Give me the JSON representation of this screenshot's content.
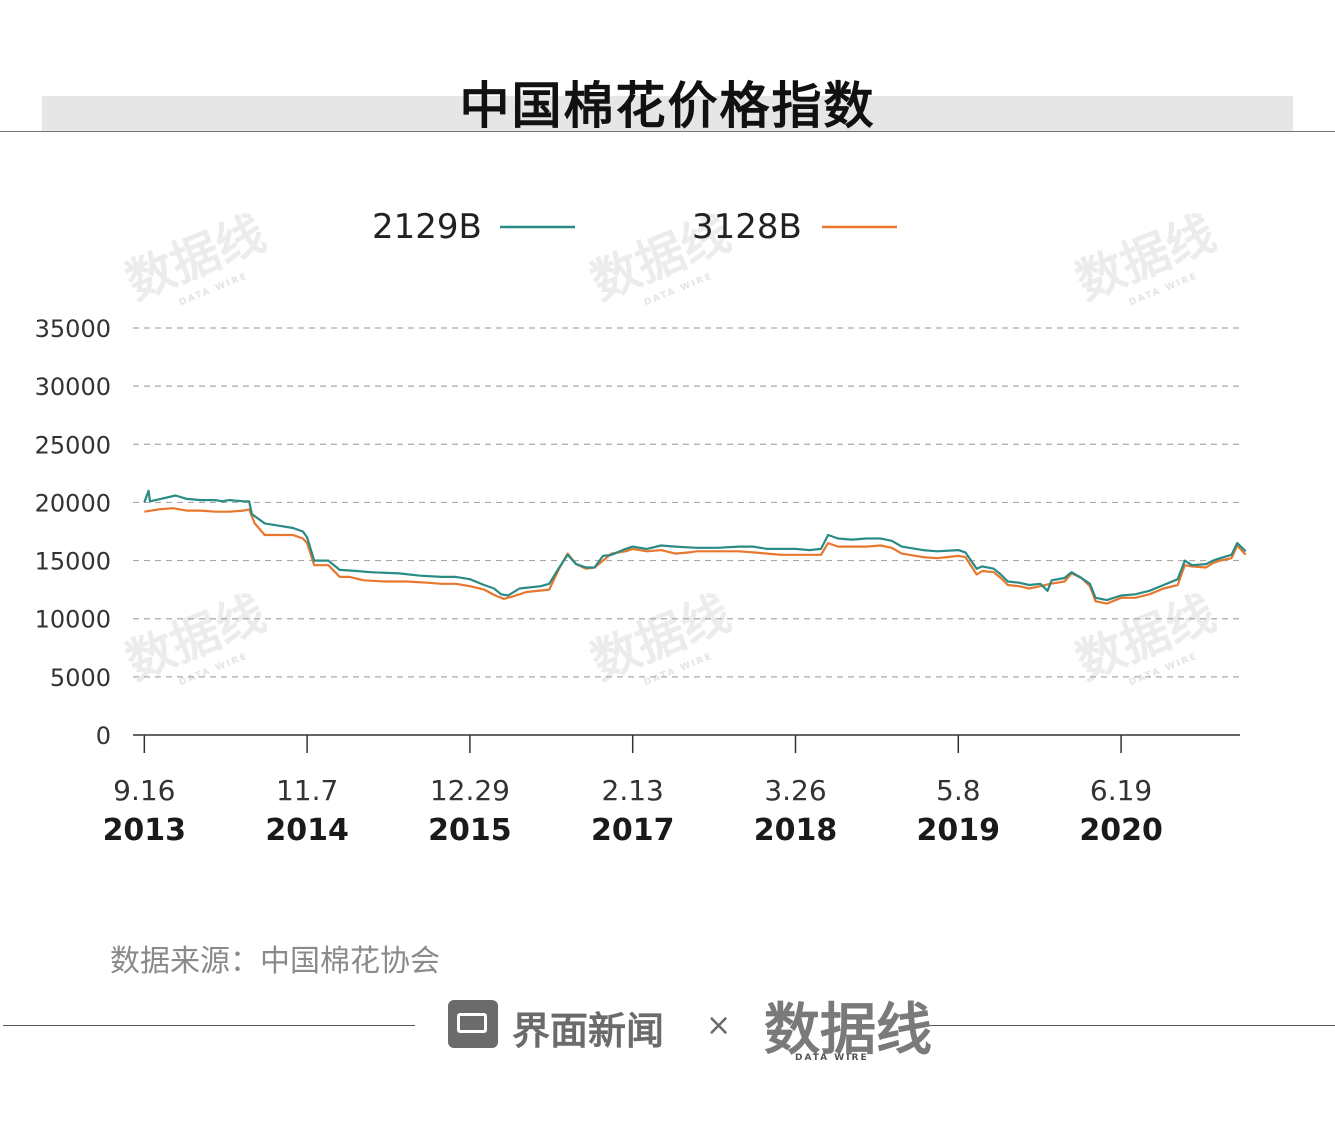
{
  "title": "中国棉花价格指数",
  "source": "数据来源：中国棉花协会",
  "footer": {
    "brand": "界面新闻",
    "times": "×",
    "partner": "数据线",
    "partner_sub": "DATA WIRE"
  },
  "watermark": {
    "text": "数据线",
    "sub": "DATA WIRE"
  },
  "colors": {
    "series_2129B": "#2a8a84",
    "series_3128B": "#e8772e",
    "grid": "#aaaaaa",
    "title_band": "#e6e6e6"
  },
  "chart_data": {
    "type": "line",
    "legend_position": "top",
    "grid": "horizontal-dashed",
    "ylim": [
      0,
      35000
    ],
    "yticks": [
      "35000",
      "30000",
      "25000",
      "20000",
      "15000",
      "10000",
      "5000",
      "0"
    ],
    "xticks": [
      {
        "date": "9.16",
        "year": "2013",
        "t": 0
      },
      {
        "date": "11.7",
        "year": "2014",
        "t": 1.15
      },
      {
        "date": "12.29",
        "year": "2015",
        "t": 2.3
      },
      {
        "date": "2.13",
        "year": "2017",
        "t": 3.45
      },
      {
        "date": "3.26",
        "year": "2018",
        "t": 4.6
      },
      {
        "date": "5.8",
        "year": "2019",
        "t": 5.75
      },
      {
        "date": "6.19",
        "year": "2020",
        "t": 6.9
      }
    ],
    "xlim": [
      -0.08,
      7.74
    ],
    "series": [
      {
        "name": "2129B",
        "color": "#2a8a84",
        "points": [
          [
            0,
            20000
          ],
          [
            0.03,
            21000
          ],
          [
            0.04,
            20100
          ],
          [
            0.15,
            20400
          ],
          [
            0.22,
            20600
          ],
          [
            0.3,
            20300
          ],
          [
            0.4,
            20200
          ],
          [
            0.5,
            20200
          ],
          [
            0.55,
            20100
          ],
          [
            0.6,
            20200
          ],
          [
            0.7,
            20100
          ],
          [
            0.74,
            20100
          ],
          [
            0.76,
            19000
          ],
          [
            0.85,
            18200
          ],
          [
            0.95,
            18000
          ],
          [
            1.05,
            17800
          ],
          [
            1.12,
            17500
          ],
          [
            1.15,
            17000
          ],
          [
            1.2,
            15000
          ],
          [
            1.3,
            15000
          ],
          [
            1.38,
            14200
          ],
          [
            1.5,
            14100
          ],
          [
            1.6,
            14000
          ],
          [
            1.8,
            13900
          ],
          [
            1.95,
            13700
          ],
          [
            2.1,
            13600
          ],
          [
            2.2,
            13600
          ],
          [
            2.3,
            13400
          ],
          [
            2.4,
            12900
          ],
          [
            2.47,
            12600
          ],
          [
            2.52,
            12100
          ],
          [
            2.57,
            12000
          ],
          [
            2.65,
            12600
          ],
          [
            2.8,
            12800
          ],
          [
            2.86,
            13000
          ],
          [
            2.92,
            14200
          ],
          [
            2.99,
            15500
          ],
          [
            3.05,
            14700
          ],
          [
            3.12,
            14400
          ],
          [
            3.18,
            14400
          ],
          [
            3.24,
            15400
          ],
          [
            3.3,
            15500
          ],
          [
            3.4,
            16000
          ],
          [
            3.45,
            16200
          ],
          [
            3.55,
            16000
          ],
          [
            3.65,
            16300
          ],
          [
            3.75,
            16200
          ],
          [
            3.9,
            16100
          ],
          [
            4.05,
            16100
          ],
          [
            4.2,
            16200
          ],
          [
            4.3,
            16200
          ],
          [
            4.4,
            16000
          ],
          [
            4.5,
            16000
          ],
          [
            4.6,
            16000
          ],
          [
            4.7,
            15900
          ],
          [
            4.78,
            16000
          ],
          [
            4.83,
            17200
          ],
          [
            4.9,
            16900
          ],
          [
            5.0,
            16800
          ],
          [
            5.1,
            16900
          ],
          [
            5.2,
            16900
          ],
          [
            5.28,
            16700
          ],
          [
            5.35,
            16200
          ],
          [
            5.5,
            15900
          ],
          [
            5.6,
            15800
          ],
          [
            5.75,
            15900
          ],
          [
            5.8,
            15700
          ],
          [
            5.88,
            14300
          ],
          [
            5.92,
            14500
          ],
          [
            6.0,
            14300
          ],
          [
            6.05,
            13800
          ],
          [
            6.1,
            13200
          ],
          [
            6.18,
            13100
          ],
          [
            6.25,
            12900
          ],
          [
            6.33,
            13000
          ],
          [
            6.38,
            12400
          ],
          [
            6.41,
            13300
          ],
          [
            6.5,
            13500
          ],
          [
            6.55,
            14000
          ],
          [
            6.62,
            13500
          ],
          [
            6.68,
            13000
          ],
          [
            6.72,
            11800
          ],
          [
            6.8,
            11600
          ],
          [
            6.9,
            12000
          ],
          [
            7.0,
            12100
          ],
          [
            7.1,
            12400
          ],
          [
            7.2,
            12900
          ],
          [
            7.3,
            13400
          ],
          [
            7.35,
            15000
          ],
          [
            7.4,
            14600
          ],
          [
            7.5,
            14700
          ],
          [
            7.55,
            15000
          ],
          [
            7.6,
            15200
          ],
          [
            7.68,
            15500
          ],
          [
            7.72,
            16500
          ],
          [
            7.78,
            15800
          ]
        ]
      },
      {
        "name": "3128B",
        "color": "#e8772e",
        "points": [
          [
            0,
            19200
          ],
          [
            0.1,
            19400
          ],
          [
            0.2,
            19500
          ],
          [
            0.3,
            19300
          ],
          [
            0.4,
            19300
          ],
          [
            0.5,
            19200
          ],
          [
            0.6,
            19200
          ],
          [
            0.7,
            19300
          ],
          [
            0.74,
            19400
          ],
          [
            0.78,
            18200
          ],
          [
            0.85,
            17200
          ],
          [
            0.95,
            17200
          ],
          [
            1.05,
            17200
          ],
          [
            1.12,
            16900
          ],
          [
            1.15,
            16500
          ],
          [
            1.2,
            14600
          ],
          [
            1.3,
            14600
          ],
          [
            1.38,
            13600
          ],
          [
            1.45,
            13600
          ],
          [
            1.55,
            13300
          ],
          [
            1.7,
            13200
          ],
          [
            1.85,
            13200
          ],
          [
            2.0,
            13100
          ],
          [
            2.1,
            13000
          ],
          [
            2.2,
            13000
          ],
          [
            2.3,
            12800
          ],
          [
            2.4,
            12500
          ],
          [
            2.48,
            12000
          ],
          [
            2.54,
            11700
          ],
          [
            2.6,
            11900
          ],
          [
            2.7,
            12300
          ],
          [
            2.86,
            12500
          ],
          [
            2.93,
            14300
          ],
          [
            2.99,
            15600
          ],
          [
            3.05,
            14700
          ],
          [
            3.12,
            14300
          ],
          [
            3.18,
            14400
          ],
          [
            3.24,
            15000
          ],
          [
            3.3,
            15600
          ],
          [
            3.4,
            15800
          ],
          [
            3.45,
            16000
          ],
          [
            3.55,
            15800
          ],
          [
            3.65,
            15900
          ],
          [
            3.75,
            15600
          ],
          [
            3.85,
            15700
          ],
          [
            3.9,
            15800
          ],
          [
            4.05,
            15800
          ],
          [
            4.2,
            15800
          ],
          [
            4.3,
            15700
          ],
          [
            4.4,
            15600
          ],
          [
            4.5,
            15500
          ],
          [
            4.6,
            15500
          ],
          [
            4.7,
            15500
          ],
          [
            4.78,
            15500
          ],
          [
            4.83,
            16500
          ],
          [
            4.9,
            16200
          ],
          [
            5.0,
            16200
          ],
          [
            5.1,
            16200
          ],
          [
            5.2,
            16300
          ],
          [
            5.28,
            16100
          ],
          [
            5.35,
            15600
          ],
          [
            5.5,
            15300
          ],
          [
            5.6,
            15200
          ],
          [
            5.75,
            15400
          ],
          [
            5.8,
            15300
          ],
          [
            5.88,
            13800
          ],
          [
            5.92,
            14100
          ],
          [
            6.0,
            14000
          ],
          [
            6.05,
            13500
          ],
          [
            6.1,
            12900
          ],
          [
            6.18,
            12800
          ],
          [
            6.25,
            12600
          ],
          [
            6.33,
            12800
          ],
          [
            6.4,
            13000
          ],
          [
            6.5,
            13200
          ],
          [
            6.55,
            13900
          ],
          [
            6.62,
            13500
          ],
          [
            6.68,
            12800
          ],
          [
            6.72,
            11500
          ],
          [
            6.8,
            11300
          ],
          [
            6.9,
            11800
          ],
          [
            7.0,
            11800
          ],
          [
            7.1,
            12100
          ],
          [
            7.2,
            12600
          ],
          [
            7.3,
            12900
          ],
          [
            7.35,
            14600
          ],
          [
            7.4,
            14500
          ],
          [
            7.5,
            14400
          ],
          [
            7.55,
            14800
          ],
          [
            7.6,
            15000
          ],
          [
            7.68,
            15200
          ],
          [
            7.72,
            16300
          ],
          [
            7.78,
            15500
          ]
        ]
      }
    ]
  }
}
